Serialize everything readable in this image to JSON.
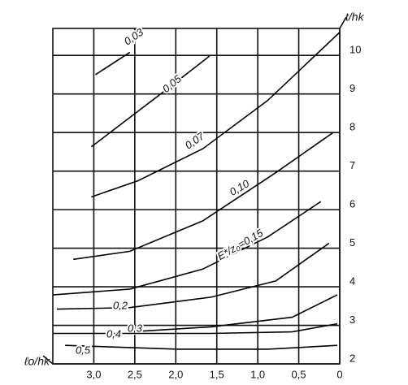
{
  "chart_data": {
    "type": "line",
    "x_label": "ℓo/hk",
    "y_label": "t/hk",
    "xlim": [
      3.5,
      0
    ],
    "ylim": [
      2,
      10.7
    ],
    "xticks": [
      {
        "value": 3,
        "label": "3,0"
      },
      {
        "value": 2.5,
        "label": "2,5"
      },
      {
        "value": 2,
        "label": "2,0"
      },
      {
        "value": 1.5,
        "label": "1,5"
      },
      {
        "value": 1,
        "label": "1,0"
      },
      {
        "value": 0.5,
        "label": "0,5"
      },
      0
    ],
    "yticks": [
      2,
      3,
      4,
      5,
      6,
      7,
      8,
      9,
      10
    ],
    "grid": true,
    "series": [
      {
        "name": "0,03",
        "color": "#000",
        "x": [
          2.98,
          2.56
        ],
        "values": [
          9.5,
          10.08
        ]
      },
      {
        "name": "0,05",
        "color": "#000",
        "x": [
          3.03,
          2.16,
          1.59
        ],
        "values": [
          7.63,
          9.04,
          9.98
        ]
      },
      {
        "name": "0,07",
        "color": "#000",
        "x": [
          3.03,
          2.46,
          1.67,
          0.88,
          0
        ],
        "values": [
          6.33,
          6.75,
          7.58,
          8.83,
          10.6
        ]
      },
      {
        "name": "0,10",
        "color": "#000",
        "x": [
          3.25,
          2.56,
          1.67,
          0.78,
          0.08
        ],
        "values": [
          4.71,
          4.92,
          5.71,
          6.96,
          8.0
        ]
      },
      {
        "name": "E*/z₀=0,15",
        "color": "#000",
        "x": [
          3.5,
          2.56,
          1.67,
          0.88,
          0.23
        ],
        "values": [
          3.79,
          3.94,
          4.46,
          5.29,
          6.21
        ]
      },
      {
        "name": "0,2",
        "color": "#000",
        "x": [
          3.45,
          2.56,
          1.57,
          0.78,
          0.13
        ],
        "values": [
          3.42,
          3.46,
          3.73,
          4.15,
          5.13
        ]
      },
      {
        "name": "0,3",
        "color": "#000",
        "x": [
          2.56,
          1.57,
          0.58,
          0.03
        ],
        "values": [
          2.83,
          2.96,
          3.21,
          3.79
        ]
      },
      {
        "name": "0,4",
        "color": "#000",
        "x": [
          3.5,
          1.57,
          0.58,
          0.03
        ],
        "values": [
          2.79,
          2.79,
          2.83,
          3.04
        ]
      },
      {
        "name": "0,5",
        "color": "#000",
        "x": [
          3.35,
          1.97,
          0.88,
          0.03
        ],
        "values": [
          2.48,
          2.38,
          2.38,
          2.48
        ]
      }
    ]
  }
}
